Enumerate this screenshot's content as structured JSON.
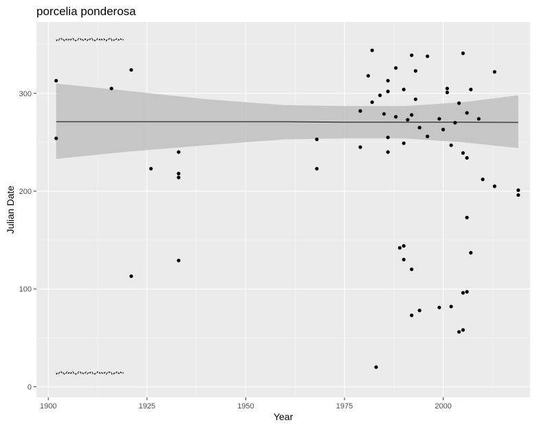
{
  "chart_data": {
    "type": "scatter",
    "title": "porcelia ponderosa",
    "xlabel": "Year",
    "ylabel": "Julian Date",
    "xlim": [
      1897,
      2022
    ],
    "ylim": [
      -11,
      373
    ],
    "xticks": [
      1900,
      1925,
      1950,
      1975,
      2000
    ],
    "yticks": [
      0,
      100,
      200,
      300
    ],
    "grid": true,
    "legend": "none",
    "colors": {
      "panel": "#ebebeb",
      "grid_major": "#ffffff",
      "grid_minor": "#f5f5f5",
      "point": "#000000",
      "band": "#bfbfbf",
      "line": "#000000",
      "ticks": "#333333",
      "tick_text": "#4d4d4d"
    },
    "points": [
      {
        "x": 1902,
        "y": 313
      },
      {
        "x": 1902,
        "y": 254
      },
      {
        "x": 1916,
        "y": 305
      },
      {
        "x": 1921,
        "y": 324
      },
      {
        "x": 1921,
        "y": 113
      },
      {
        "x": 1926,
        "y": 223
      },
      {
        "x": 1933,
        "y": 240
      },
      {
        "x": 1933,
        "y": 218
      },
      {
        "x": 1933,
        "y": 214
      },
      {
        "x": 1933,
        "y": 129
      },
      {
        "x": 1968,
        "y": 253
      },
      {
        "x": 1968,
        "y": 223
      },
      {
        "x": 1979,
        "y": 282
      },
      {
        "x": 1979,
        "y": 245
      },
      {
        "x": 1981,
        "y": 318
      },
      {
        "x": 1982,
        "y": 344
      },
      {
        "x": 1982,
        "y": 291
      },
      {
        "x": 1983,
        "y": 20
      },
      {
        "x": 1984,
        "y": 298
      },
      {
        "x": 1985,
        "y": 279
      },
      {
        "x": 1986,
        "y": 313
      },
      {
        "x": 1986,
        "y": 302
      },
      {
        "x": 1986,
        "y": 255
      },
      {
        "x": 1986,
        "y": 240
      },
      {
        "x": 1988,
        "y": 326
      },
      {
        "x": 1988,
        "y": 276
      },
      {
        "x": 1989,
        "y": 142
      },
      {
        "x": 1990,
        "y": 144
      },
      {
        "x": 1990,
        "y": 304
      },
      {
        "x": 1990,
        "y": 249
      },
      {
        "x": 1990,
        "y": 130
      },
      {
        "x": 1991,
        "y": 273
      },
      {
        "x": 1992,
        "y": 339
      },
      {
        "x": 1992,
        "y": 278
      },
      {
        "x": 1992,
        "y": 120
      },
      {
        "x": 1992,
        "y": 73
      },
      {
        "x": 1993,
        "y": 323
      },
      {
        "x": 1993,
        "y": 294
      },
      {
        "x": 1994,
        "y": 265
      },
      {
        "x": 1994,
        "y": 78
      },
      {
        "x": 1996,
        "y": 338
      },
      {
        "x": 1996,
        "y": 256
      },
      {
        "x": 1999,
        "y": 274
      },
      {
        "x": 1999,
        "y": 81
      },
      {
        "x": 2000,
        "y": 263
      },
      {
        "x": 2001,
        "y": 305
      },
      {
        "x": 2001,
        "y": 301
      },
      {
        "x": 2002,
        "y": 247
      },
      {
        "x": 2002,
        "y": 82
      },
      {
        "x": 2003,
        "y": 270
      },
      {
        "x": 2004,
        "y": 290
      },
      {
        "x": 2004,
        "y": 56
      },
      {
        "x": 2005,
        "y": 341
      },
      {
        "x": 2005,
        "y": 239
      },
      {
        "x": 2005,
        "y": 96
      },
      {
        "x": 2005,
        "y": 58
      },
      {
        "x": 2006,
        "y": 280
      },
      {
        "x": 2006,
        "y": 234
      },
      {
        "x": 2006,
        "y": 173
      },
      {
        "x": 2006,
        "y": 97
      },
      {
        "x": 2007,
        "y": 304
      },
      {
        "x": 2007,
        "y": 137
      },
      {
        "x": 2009,
        "y": 274
      },
      {
        "x": 2010,
        "y": 212
      },
      {
        "x": 2013,
        "y": 322
      },
      {
        "x": 2013,
        "y": 205
      },
      {
        "x": 2019,
        "y": 201
      },
      {
        "x": 2019,
        "y": 196
      }
    ],
    "trend": {
      "x": [
        1902,
        1919,
        1940,
        1960,
        1975,
        1990,
        2005,
        2019
      ],
      "y": [
        271,
        271,
        271,
        271,
        270.5,
        270.5,
        270.5,
        270.3
      ],
      "lower": [
        233,
        240,
        247,
        253,
        254,
        254,
        250,
        244
      ],
      "upper": [
        310,
        303,
        294,
        288,
        287,
        287,
        291,
        298
      ]
    },
    "bounds": {
      "x": [
        1902,
        1919
      ],
      "upper_y": [
        355,
        355
      ],
      "lower_y": [
        14,
        14
      ]
    }
  }
}
